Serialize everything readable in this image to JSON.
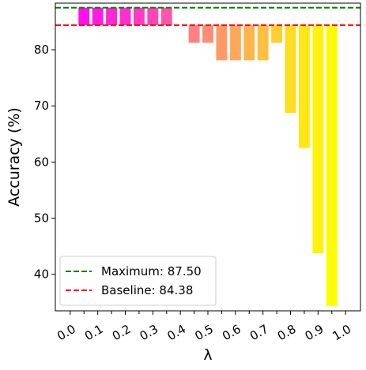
{
  "chart_data": {
    "type": "bar",
    "xlabel": "λ",
    "ylabel": "Accuracy (%)",
    "ylim": [
      33.5,
      88.3
    ],
    "yticks": [
      40,
      50,
      60,
      70,
      80
    ],
    "x_ticks": [
      "0.0",
      "0.1",
      "0.2",
      "0.3",
      "0.4",
      "0.5",
      "0.6",
      "0.7",
      "0.8",
      "0.9",
      "1.0"
    ],
    "bar_style": "floating bars drawn from the baseline (84.38) to each value",
    "bars": [
      {
        "lambda": 0.05,
        "value": 87.5,
        "color": "#ff12e9"
      },
      {
        "lambda": 0.1,
        "value": 87.5,
        "color": "#ff1ce0"
      },
      {
        "lambda": 0.15,
        "value": 87.5,
        "color": "#ff26d8"
      },
      {
        "lambda": 0.2,
        "value": 87.5,
        "color": "#ff30cf"
      },
      {
        "lambda": 0.25,
        "value": 87.5,
        "color": "#ff3ac5"
      },
      {
        "lambda": 0.3,
        "value": 87.5,
        "color": "#ff44bb"
      },
      {
        "lambda": 0.35,
        "value": 87.5,
        "color": "#ff56ac"
      },
      {
        "lambda": 0.45,
        "value": 81.25,
        "color": "#ff8080"
      },
      {
        "lambda": 0.5,
        "value": 81.25,
        "color": "#ff8c74"
      },
      {
        "lambda": 0.55,
        "value": 78.13,
        "color": "#ff9a66"
      },
      {
        "lambda": 0.6,
        "value": 78.13,
        "color": "#ffa75a"
      },
      {
        "lambda": 0.65,
        "value": 78.13,
        "color": "#ffb44c"
      },
      {
        "lambda": 0.7,
        "value": 78.13,
        "color": "#ffc03f"
      },
      {
        "lambda": 0.75,
        "value": 81.25,
        "color": "#ffcf30"
      },
      {
        "lambda": 0.8,
        "value": 68.75,
        "color": "#ffdd22"
      },
      {
        "lambda": 0.85,
        "value": 62.5,
        "color": "#ffe716"
      },
      {
        "lambda": 0.9,
        "value": 43.75,
        "color": "#fff20c"
      },
      {
        "lambda": 0.95,
        "value": 34.38,
        "color": "#fffb04"
      }
    ],
    "reference_lines": [
      {
        "name": "Maximum",
        "value": 87.5,
        "label": "Maximum: 87.50",
        "color": "#008000",
        "style": "dashed"
      },
      {
        "name": "Baseline",
        "value": 84.38,
        "label": "Baseline: 84.38",
        "color": "#ff0000",
        "style": "dashed"
      }
    ],
    "legend_position": "lower-left",
    "grid": false
  }
}
